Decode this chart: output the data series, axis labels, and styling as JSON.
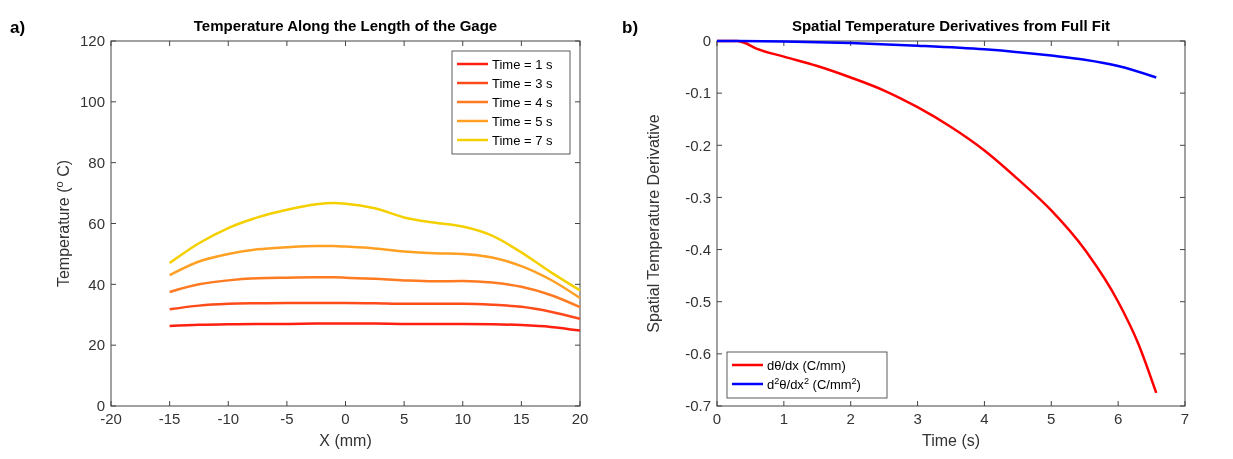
{
  "chart_data": [
    {
      "type": "line",
      "title": "Temperature Along the Length of the Gage",
      "xlabel": "X (mm)",
      "ylabel": "Temperature ($^{o}$ C)",
      "annotations": [
        "a)"
      ],
      "xlim": [
        -20,
        20
      ],
      "xticks": [
        -20,
        -15,
        -10,
        -5,
        0,
        5,
        10,
        15,
        20
      ],
      "ylim": [
        0,
        120
      ],
      "yticks": [
        0,
        20,
        40,
        60,
        80,
        100,
        120
      ],
      "grid": false,
      "legend": "top right",
      "line_style": "solid",
      "x": [
        -15,
        -12.5,
        -10,
        -7.5,
        -5,
        -2.5,
        -1,
        0,
        2.5,
        5,
        7.5,
        10,
        12.5,
        15,
        17.5,
        20
      ],
      "series": [
        {
          "name": "Time = 1 s",
          "color": "#ff2010",
          "values": [
            26.3,
            26.7,
            26.9,
            27,
            27,
            27.1,
            27.1,
            27.1,
            27.1,
            27,
            27,
            27,
            26.9,
            26.6,
            26,
            24.8
          ]
        },
        {
          "name": "Time = 3 s",
          "color": "#ff4a1a",
          "values": [
            31.8,
            33,
            33.6,
            33.8,
            33.9,
            33.9,
            33.9,
            33.9,
            33.8,
            33.6,
            33.6,
            33.6,
            33.3,
            32.6,
            31,
            28.7
          ]
        },
        {
          "name": "Time = 4 s",
          "color": "#ff7a20",
          "values": [
            37.5,
            40,
            41.3,
            42,
            42.2,
            42.3,
            42.3,
            42.2,
            41.8,
            41.3,
            41,
            41.1,
            40.6,
            39.2,
            36.5,
            32.5
          ]
        },
        {
          "name": "Time = 5 s",
          "color": "#ffa024",
          "values": [
            43,
            47.5,
            50,
            51.5,
            52.2,
            52.6,
            52.6,
            52.4,
            51.8,
            50.8,
            50.2,
            50,
            48.8,
            46,
            41.5,
            35.5
          ]
        },
        {
          "name": "Time = 7 s",
          "color": "#f5d000",
          "values": [
            47,
            53.5,
            58.5,
            62,
            64.5,
            66.3,
            66.7,
            66.5,
            65,
            62,
            60.3,
            59,
            56,
            50.5,
            44,
            38
          ]
        }
      ]
    },
    {
      "type": "line",
      "title": "Spatial Temperature Derivatives from Full Fit",
      "xlabel": "Time (s)",
      "ylabel": "Spatial Temperature Derivative",
      "annotations": [
        "b)"
      ],
      "xlim": [
        0,
        7
      ],
      "xticks": [
        0,
        1,
        2,
        3,
        4,
        5,
        6,
        7
      ],
      "ylim": [
        -0.7,
        0
      ],
      "yticks": [
        -0.7,
        -0.6,
        -0.5,
        -0.4,
        -0.3,
        -0.2,
        -0.1,
        0
      ],
      "grid": false,
      "legend": "bottom left",
      "line_style": "solid",
      "series": [
        {
          "name": "dθ/dx (C/mm)",
          "color": "#ff0000",
          "x": [
            0,
            0.3,
            0.4,
            0.6,
            1,
            1.5,
            2,
            2.5,
            3,
            3.5,
            4,
            4.5,
            5,
            5.5,
            6,
            6.3,
            6.57
          ],
          "values": [
            0,
            0,
            -0.003,
            -0.015,
            -0.03,
            -0.048,
            -0.07,
            -0.095,
            -0.127,
            -0.165,
            -0.21,
            -0.265,
            -0.325,
            -0.4,
            -0.5,
            -0.58,
            -0.675
          ]
        },
        {
          "name": "d$^{2}$θ/dx$^{2}$ (C/mm$^{2}$)",
          "color": "#0000ff",
          "x": [
            0,
            1,
            2,
            3,
            4,
            5,
            5.5,
            6,
            6.57
          ],
          "values": [
            0,
            -0.001,
            -0.004,
            -0.009,
            -0.016,
            -0.028,
            -0.036,
            -0.048,
            -0.07
          ]
        }
      ]
    }
  ]
}
